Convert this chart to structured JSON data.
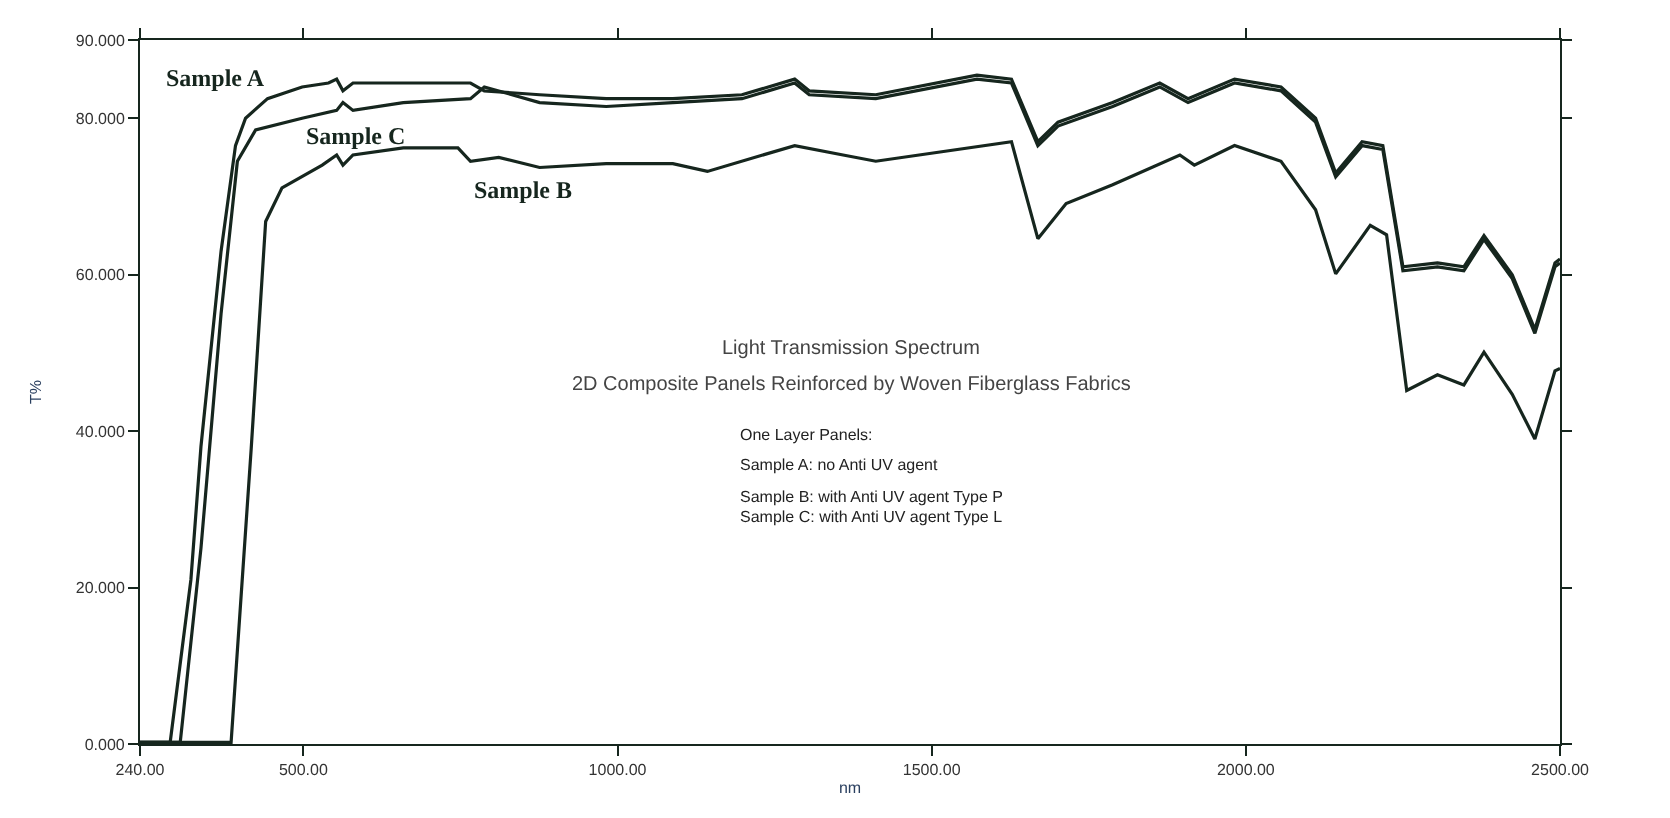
{
  "chart_data": {
    "type": "line",
    "xlabel": "nm",
    "ylabel": "T%",
    "xlim": [
      240,
      2500
    ],
    "ylim": [
      0,
      90
    ],
    "xticks": [
      {
        "value": 240,
        "label": "240.00"
      },
      {
        "value": 500,
        "label": "500.00"
      },
      {
        "value": 1000,
        "label": "1000.00"
      },
      {
        "value": 1500,
        "label": "1500.00"
      },
      {
        "value": 2000,
        "label": "2000.00"
      },
      {
        "value": 2500,
        "label": "2500.00"
      }
    ],
    "yticks": [
      {
        "value": 0,
        "label": "0.000"
      },
      {
        "value": 20,
        "label": "20.000"
      },
      {
        "value": 40,
        "label": "40.000"
      },
      {
        "value": 60,
        "label": "60.000"
      },
      {
        "value": 80,
        "label": "80.000"
      },
      {
        "value": 90,
        "label": "90.000"
      }
    ],
    "marker": "none",
    "line_style": "solid",
    "series": [
      {
        "name": "Sample A",
        "color": "#16261e",
        "x": [
          240,
          288,
          321,
          337,
          369,
          392,
          408,
          443,
          498,
          540,
          553,
          563,
          579,
          659,
          766,
          788,
          876,
          982,
          1088,
          1198,
          1282,
          1305,
          1411,
          1572,
          1627,
          1669,
          1701,
          1788,
          1863,
          1908,
          1982,
          2056,
          2111,
          2143,
          2185,
          2218,
          2250,
          2305,
          2347,
          2379,
          2424,
          2460,
          2492,
          2500
        ],
        "values": [
          0.2,
          0.2,
          21,
          38,
          63,
          76.5,
          80,
          82.5,
          84,
          84.5,
          85,
          83.5,
          84.5,
          84.5,
          84.5,
          83.5,
          83,
          82.5,
          82.5,
          83,
          85,
          83.5,
          83,
          85.5,
          85,
          77,
          79.5,
          82,
          84.5,
          82.5,
          85,
          84,
          80,
          73,
          77,
          76.5,
          61,
          61.5,
          61,
          65,
          60,
          53,
          61.5,
          62
        ]
      },
      {
        "name": "Sample B",
        "color": "#16261e",
        "x": [
          240,
          385,
          417,
          440,
          466,
          530,
          553,
          563,
          579,
          659,
          746,
          766,
          811,
          876,
          982,
          1088,
          1143,
          1282,
          1359,
          1411,
          1627,
          1669,
          1714,
          1788,
          1895,
          1918,
          1982,
          2056,
          2111,
          2143,
          2198,
          2224,
          2256,
          2305,
          2347,
          2379,
          2424,
          2460,
          2492,
          2500
        ],
        "values": [
          0.2,
          0.2,
          37.8,
          66.8,
          71.1,
          74,
          75.3,
          74,
          75.3,
          76.2,
          76.2,
          74.5,
          75,
          73.7,
          74.2,
          74.2,
          73.2,
          76.5,
          75.3,
          74.5,
          77,
          64.6,
          69.1,
          71.5,
          75.3,
          74,
          76.5,
          74.5,
          68.3,
          60.1,
          66.3,
          65.1,
          45.2,
          47.2,
          45.9,
          50.1,
          44.7,
          39,
          47.7,
          48
        ]
      },
      {
        "name": "Sample C",
        "color": "#16261e",
        "x": [
          240,
          304,
          337,
          369,
          395,
          424,
          498,
          553,
          563,
          579,
          659,
          766,
          788,
          876,
          982,
          1088,
          1198,
          1282,
          1305,
          1411,
          1572,
          1627,
          1669,
          1701,
          1788,
          1863,
          1908,
          1982,
          2056,
          2111,
          2143,
          2185,
          2218,
          2250,
          2305,
          2347,
          2379,
          2424,
          2460,
          2492,
          2500
        ],
        "values": [
          0.2,
          0.2,
          25,
          55,
          74.5,
          78.5,
          80,
          81,
          82,
          81,
          82,
          82.5,
          84,
          82,
          81.5,
          82,
          82.5,
          84.5,
          83,
          82.5,
          85,
          84.5,
          76.5,
          79,
          81.5,
          84,
          82,
          84.5,
          83.5,
          79.5,
          72.5,
          76.5,
          76,
          60.5,
          61,
          60.5,
          64.5,
          59.5,
          52.5,
          61,
          61.5
        ]
      }
    ],
    "annotations": [
      "Light Transmission Spectrum",
      "2D Composite Panels Reinforced by Woven Fiberglass Fabrics",
      "One Layer Panels:",
      "Sample A: no Anti UV agent",
      "Sample B: with Anti UV agent Type P",
      "Sample C: with Anti UV agent Type L"
    ]
  }
}
